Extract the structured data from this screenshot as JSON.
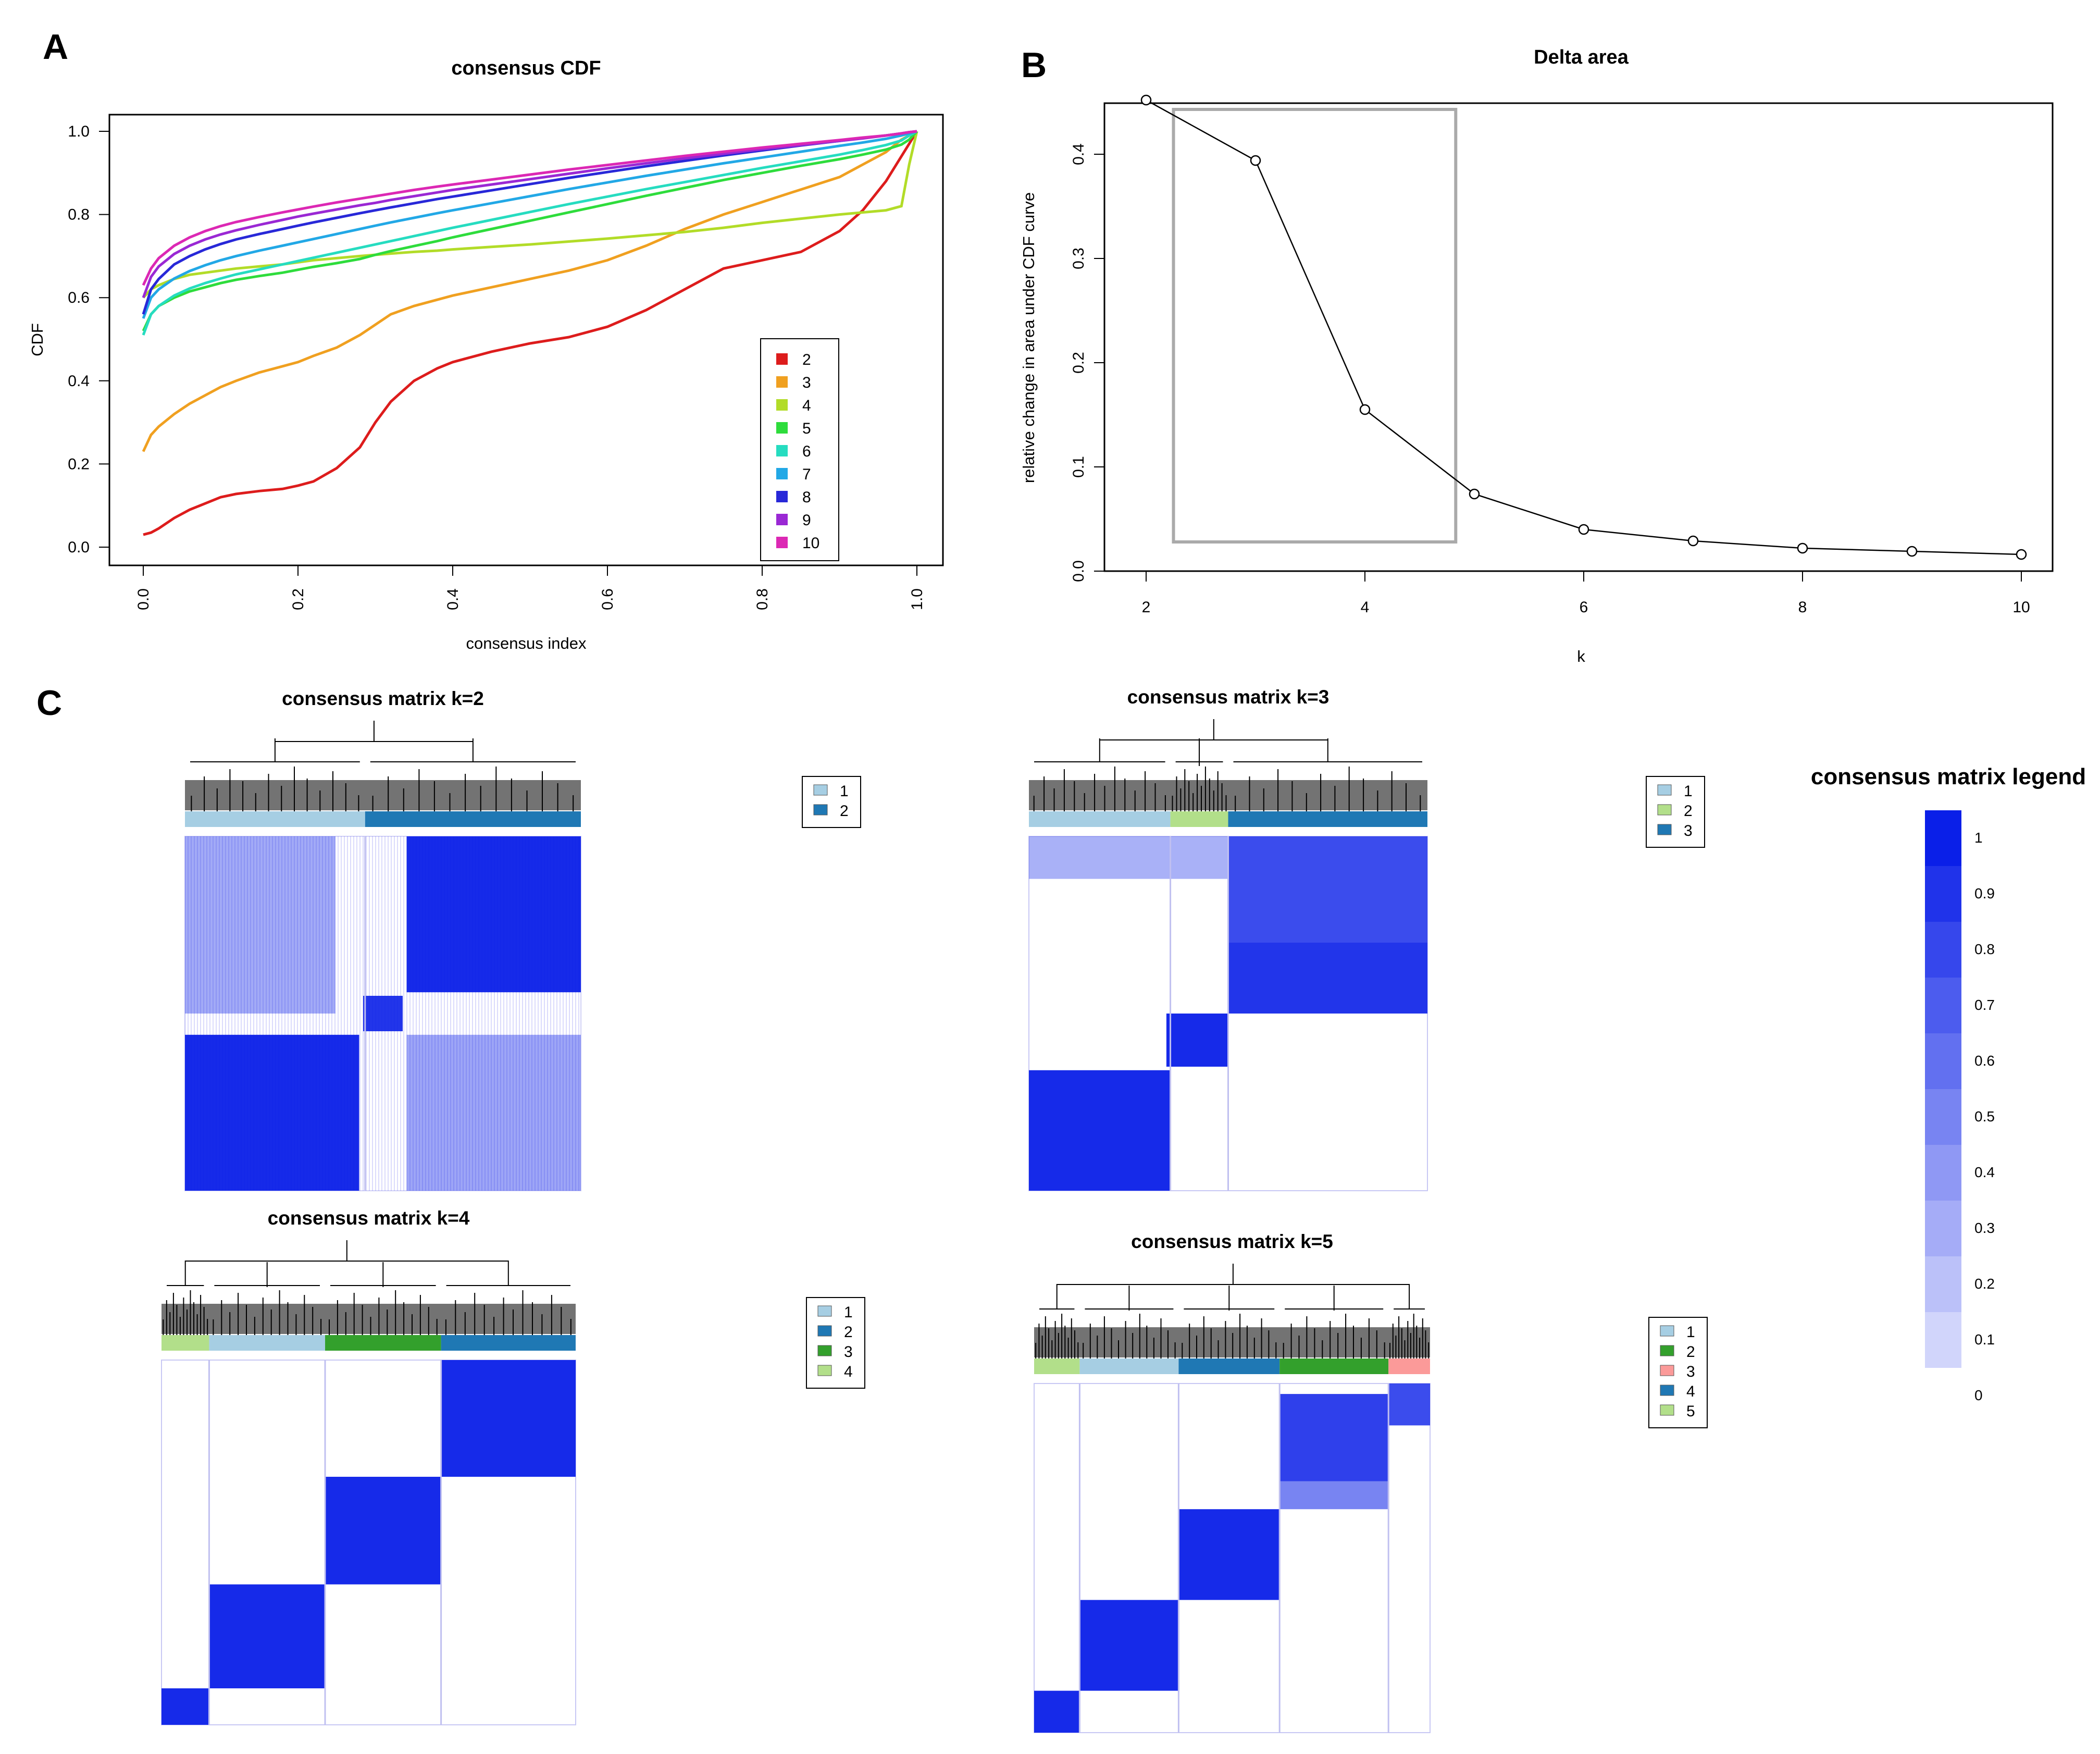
{
  "panels": {
    "a": "A",
    "b": "B",
    "c": "C"
  },
  "chart_data": [
    {
      "type": "line",
      "title": "consensus CDF",
      "xlabel": "consensus index",
      "ylabel": "CDF",
      "xlim": [
        0,
        1
      ],
      "ylim": [
        0,
        1
      ],
      "x_ticks": [
        "0.0",
        "0.2",
        "0.4",
        "0.6",
        "0.8",
        "1.0"
      ],
      "y_ticks": [
        "0.0",
        "0.2",
        "0.4",
        "0.6",
        "0.8",
        "1.0"
      ],
      "legend_position": "bottom-right",
      "x": [
        0,
        0.01,
        0.02,
        0.04,
        0.06,
        0.08,
        0.1,
        0.12,
        0.15,
        0.18,
        0.2,
        0.22,
        0.25,
        0.28,
        0.3,
        0.32,
        0.35,
        0.38,
        0.4,
        0.45,
        0.5,
        0.55,
        0.6,
        0.65,
        0.7,
        0.75,
        0.8,
        0.85,
        0.9,
        0.93,
        0.96,
        0.98,
        0.99,
        1.0
      ],
      "series": [
        {
          "name": "2",
          "color": "#dd1c1c",
          "values": [
            0.03,
            0.035,
            0.045,
            0.07,
            0.09,
            0.105,
            0.12,
            0.128,
            0.135,
            0.14,
            0.148,
            0.158,
            0.19,
            0.24,
            0.3,
            0.35,
            0.4,
            0.43,
            0.445,
            0.47,
            0.49,
            0.505,
            0.53,
            0.57,
            0.62,
            0.67,
            0.69,
            0.71,
            0.76,
            0.81,
            0.88,
            0.94,
            0.97,
            1.0
          ]
        },
        {
          "name": "3",
          "color": "#f0a020",
          "values": [
            0.23,
            0.27,
            0.29,
            0.32,
            0.345,
            0.365,
            0.385,
            0.4,
            0.42,
            0.435,
            0.445,
            0.46,
            0.48,
            0.51,
            0.535,
            0.56,
            0.58,
            0.595,
            0.605,
            0.625,
            0.645,
            0.665,
            0.69,
            0.725,
            0.765,
            0.8,
            0.83,
            0.86,
            0.89,
            0.92,
            0.95,
            0.98,
            0.99,
            1.0
          ]
        },
        {
          "name": "4",
          "color": "#b2dc28",
          "values": [
            0.6,
            0.62,
            0.63,
            0.645,
            0.655,
            0.66,
            0.665,
            0.67,
            0.675,
            0.68,
            0.685,
            0.69,
            0.695,
            0.7,
            0.703,
            0.706,
            0.71,
            0.713,
            0.716,
            0.722,
            0.728,
            0.735,
            0.742,
            0.75,
            0.758,
            0.768,
            0.78,
            0.79,
            0.8,
            0.805,
            0.81,
            0.82,
            0.92,
            1.0
          ]
        },
        {
          "name": "5",
          "color": "#2edc3c",
          "values": [
            0.52,
            0.56,
            0.58,
            0.6,
            0.615,
            0.625,
            0.635,
            0.643,
            0.652,
            0.66,
            0.667,
            0.674,
            0.683,
            0.693,
            0.703,
            0.712,
            0.724,
            0.736,
            0.745,
            0.765,
            0.785,
            0.805,
            0.825,
            0.845,
            0.864,
            0.883,
            0.9,
            0.917,
            0.933,
            0.944,
            0.956,
            0.968,
            0.98,
            1.0
          ]
        },
        {
          "name": "6",
          "color": "#26dcc0",
          "values": [
            0.51,
            0.56,
            0.58,
            0.605,
            0.622,
            0.635,
            0.646,
            0.656,
            0.668,
            0.68,
            0.688,
            0.696,
            0.708,
            0.72,
            0.728,
            0.736,
            0.748,
            0.76,
            0.768,
            0.787,
            0.806,
            0.825,
            0.843,
            0.861,
            0.878,
            0.895,
            0.912,
            0.928,
            0.944,
            0.955,
            0.967,
            0.978,
            0.99,
            1.0
          ]
        },
        {
          "name": "7",
          "color": "#22a8e6",
          "values": [
            0.55,
            0.6,
            0.62,
            0.646,
            0.664,
            0.678,
            0.69,
            0.7,
            0.713,
            0.725,
            0.733,
            0.741,
            0.753,
            0.765,
            0.773,
            0.781,
            0.792,
            0.803,
            0.81,
            0.827,
            0.844,
            0.861,
            0.877,
            0.893,
            0.908,
            0.923,
            0.937,
            0.951,
            0.965,
            0.973,
            0.982,
            0.99,
            0.995,
            1.0
          ]
        },
        {
          "name": "8",
          "color": "#2828d8",
          "values": [
            0.56,
            0.62,
            0.645,
            0.68,
            0.7,
            0.716,
            0.729,
            0.74,
            0.753,
            0.765,
            0.773,
            0.781,
            0.792,
            0.803,
            0.81,
            0.817,
            0.827,
            0.837,
            0.843,
            0.858,
            0.873,
            0.888,
            0.902,
            0.916,
            0.929,
            0.942,
            0.954,
            0.966,
            0.977,
            0.984,
            0.99,
            0.995,
            0.998,
            1.0
          ]
        },
        {
          "name": "9",
          "color": "#9a28d4",
          "values": [
            0.6,
            0.65,
            0.675,
            0.705,
            0.725,
            0.74,
            0.752,
            0.762,
            0.775,
            0.787,
            0.795,
            0.802,
            0.812,
            0.822,
            0.828,
            0.835,
            0.844,
            0.853,
            0.859,
            0.872,
            0.885,
            0.898,
            0.911,
            0.923,
            0.935,
            0.946,
            0.957,
            0.967,
            0.977,
            0.983,
            0.99,
            0.995,
            0.998,
            1.0
          ]
        },
        {
          "name": "10",
          "color": "#dc28b4",
          "values": [
            0.63,
            0.67,
            0.695,
            0.725,
            0.745,
            0.76,
            0.772,
            0.782,
            0.794,
            0.805,
            0.812,
            0.819,
            0.829,
            0.838,
            0.844,
            0.85,
            0.859,
            0.867,
            0.872,
            0.884,
            0.896,
            0.908,
            0.919,
            0.93,
            0.941,
            0.951,
            0.961,
            0.97,
            0.979,
            0.985,
            0.99,
            0.995,
            0.998,
            1.0
          ]
        }
      ]
    },
    {
      "type": "line",
      "title": "Delta area",
      "xlabel": "k",
      "ylabel": "relative change in area under CDF curve",
      "xlim": [
        2,
        10
      ],
      "ylim": [
        0,
        0.45
      ],
      "x_ticks": [
        "2",
        "4",
        "6",
        "8",
        "10"
      ],
      "y_ticks": [
        "0.0",
        "0.1",
        "0.2",
        "0.3",
        "0.4"
      ],
      "highlight_box": {
        "k_range": [
          2.25,
          4.83
        ],
        "y_range": [
          0.028,
          0.443
        ]
      },
      "x": [
        2,
        3,
        4,
        5,
        6,
        7,
        8,
        9,
        10
      ],
      "values": [
        0.452,
        0.394,
        0.155,
        0.074,
        0.04,
        0.029,
        0.022,
        0.019,
        0.016
      ]
    },
    {
      "type": "heatmap",
      "title": "consensus matrix k=2",
      "clusters": [
        "1",
        "2"
      ],
      "cluster_colors": [
        "#a6cee3",
        "#1f78b4"
      ]
    },
    {
      "type": "heatmap",
      "title": "consensus matrix k=3",
      "clusters": [
        "1",
        "2",
        "3"
      ],
      "cluster_colors": [
        "#a6cee3",
        "#b2df8a",
        "#1f78b4"
      ]
    },
    {
      "type": "heatmap",
      "title": "consensus matrix k=4",
      "clusters": [
        "1",
        "2",
        "3",
        "4"
      ],
      "cluster_colors": [
        "#a6cee3",
        "#1f78b4",
        "#33a02c",
        "#b2df8a"
      ]
    },
    {
      "type": "heatmap",
      "title": "consensus matrix k=5",
      "clusters": [
        "1",
        "2",
        "3",
        "4",
        "5"
      ],
      "cluster_colors": [
        "#a6cee3",
        "#33a02c",
        "#fb9a99",
        "#1f78b4",
        "#b2df8a"
      ]
    }
  ],
  "consensus_legend": {
    "title": "consensus matrix legend",
    "levels": [
      "1",
      "0.9",
      "0.8",
      "0.7",
      "0.6",
      "0.5",
      "0.4",
      "0.3",
      "0.2",
      "0.1",
      "0"
    ]
  }
}
